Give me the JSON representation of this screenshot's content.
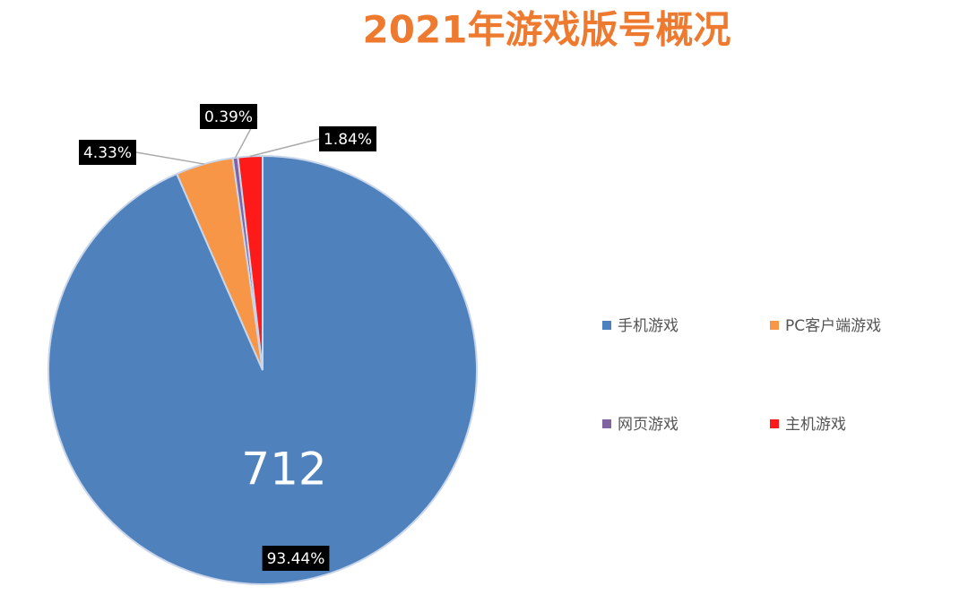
{
  "chart_data": {
    "type": "pie",
    "title": "2021年游戏版号概况",
    "categories": [
      "手机游戏",
      "PC客户端游戏",
      "网页游戏",
      "主机游戏"
    ],
    "values": [
      93.44,
      4.33,
      0.39,
      1.84
    ],
    "value_labels": [
      "93.44%",
      "4.33%",
      "0.39%",
      "1.84%"
    ],
    "colors": [
      "#4f81bd",
      "#f79646",
      "#8064a2",
      "#ff1a1a"
    ],
    "annotation": "712",
    "legend": "right"
  }
}
